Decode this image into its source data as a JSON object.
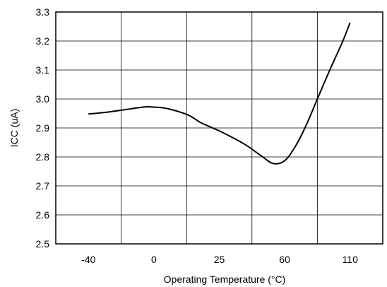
{
  "chart_data": {
    "type": "line",
    "xlabel": "Operating Temperature (°C)",
    "ylabel": "ICC (uA)",
    "x_tick_labels": [
      "-40",
      "0",
      "25",
      "60",
      "110"
    ],
    "y_tick_labels": [
      "2.5",
      "2.6",
      "2.7",
      "2.8",
      "2.9",
      "3.0",
      "3.1",
      "3.2",
      "3.3"
    ],
    "ylim": [
      2.5,
      3.3
    ],
    "grid": true,
    "series": [
      {
        "points": [
          {
            "x": -40,
            "y": 2.948
          },
          {
            "x": -28,
            "y": 2.955
          },
          {
            "x": -14,
            "y": 2.966
          },
          {
            "x": -5,
            "y": 2.973
          },
          {
            "x": 0,
            "y": 2.972
          },
          {
            "x": 5,
            "y": 2.967
          },
          {
            "x": 13,
            "y": 2.945
          },
          {
            "x": 18,
            "y": 2.918
          },
          {
            "x": 25,
            "y": 2.89
          },
          {
            "x": 32,
            "y": 2.867
          },
          {
            "x": 40,
            "y": 2.838
          },
          {
            "x": 48,
            "y": 2.801
          },
          {
            "x": 54,
            "y": 2.777
          },
          {
            "x": 60,
            "y": 2.787
          },
          {
            "x": 68,
            "y": 2.835
          },
          {
            "x": 76,
            "y": 2.905
          },
          {
            "x": 85,
            "y": 3.0
          },
          {
            "x": 95,
            "y": 3.105
          },
          {
            "x": 104,
            "y": 3.195
          },
          {
            "x": 110,
            "y": 3.263
          }
        ]
      }
    ]
  },
  "colors": {
    "line": "#000000",
    "grid": "#000000",
    "background": "#ffffff"
  }
}
